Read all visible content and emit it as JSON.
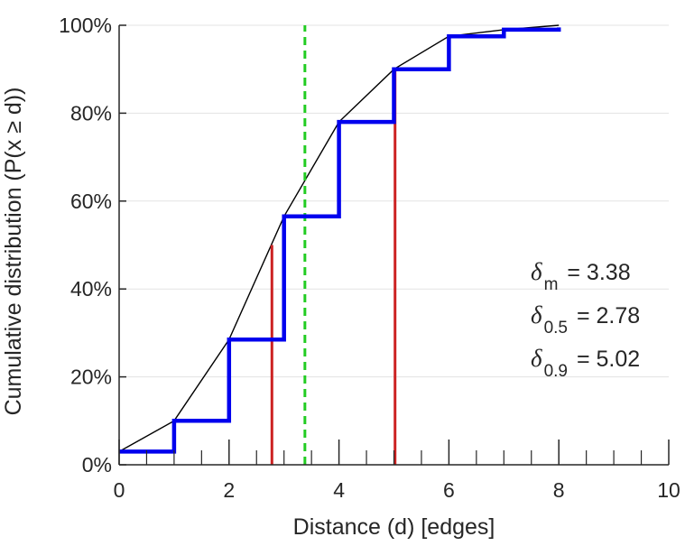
{
  "chart_data": {
    "type": "line",
    "title": "",
    "xlabel": "Distance (d) [edges]",
    "ylabel": "Cumulative distribution (P(x ≥ d))",
    "xlim": [
      0,
      10
    ],
    "ylim": [
      0,
      100
    ],
    "x_ticks": [
      0,
      2,
      4,
      6,
      8,
      10
    ],
    "x_tick_labels": [
      "0",
      "2",
      "4",
      "6",
      "8",
      "10"
    ],
    "x_minor_ticks": [
      0.5,
      1,
      1.5,
      2.5,
      3,
      3.5,
      4.5,
      5,
      5.5,
      6.5,
      7,
      7.5,
      8.5,
      9,
      9.5
    ],
    "y_ticks": [
      0,
      20,
      40,
      60,
      80,
      100
    ],
    "y_tick_labels": [
      "0%",
      "20%",
      "40%",
      "60%",
      "80%",
      "100%"
    ],
    "grid": "horizontal",
    "colors": {
      "step": "#0000ee",
      "smooth": "#000000",
      "mean": "#22cc22",
      "quantiles": "#cc2222",
      "grid": "#e3e3e3",
      "axis": "#262626"
    },
    "series": [
      {
        "name": "empirical-cdf-step",
        "style": "step",
        "x": [
          0,
          1,
          2,
          3,
          4,
          5,
          6,
          7,
          8
        ],
        "y": [
          3,
          10,
          28.5,
          56.5,
          78,
          90,
          97.5,
          99,
          99.5
        ]
      },
      {
        "name": "interpolated-cdf",
        "style": "line",
        "x": [
          0,
          1,
          2,
          3,
          4,
          5,
          6,
          7,
          8
        ],
        "y": [
          3,
          10,
          28.5,
          56.5,
          78,
          90,
          97.5,
          99,
          100
        ]
      }
    ],
    "vlines": [
      {
        "name": "mean-line",
        "x": 3.38,
        "y_top": 100,
        "style": "dashed",
        "color_key": "mean"
      },
      {
        "name": "median-line",
        "x": 2.78,
        "y_top": 50,
        "style": "solid",
        "color_key": "quantiles"
      },
      {
        "name": "p90-line",
        "x": 5.02,
        "y_top": 90,
        "style": "solid",
        "color_key": "quantiles"
      }
    ],
    "annotations": [
      {
        "name": "annot-mean",
        "symbol": "δ",
        "sub": "m",
        "text": "= 3.38"
      },
      {
        "name": "annot-median",
        "symbol": "δ",
        "sub": "0.5",
        "text": "= 2.78"
      },
      {
        "name": "annot-p90",
        "symbol": "δ",
        "sub": "0.9",
        "text": "= 5.02"
      }
    ]
  }
}
